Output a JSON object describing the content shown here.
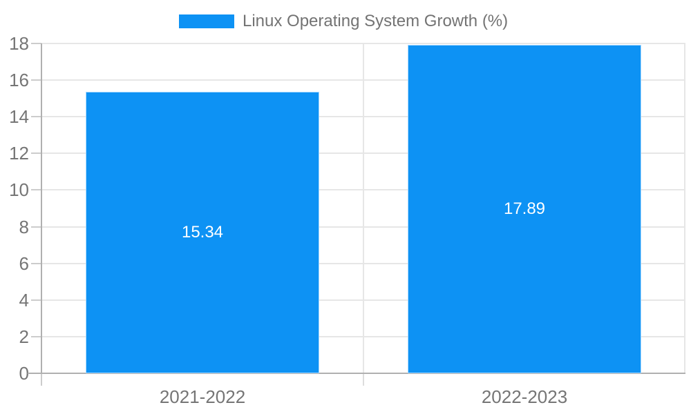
{
  "legend": {
    "label": "Linux Operating System Growth (%)"
  },
  "colors": {
    "bar": "#0d92f4",
    "bar_edge": "#a8d9ff",
    "gridline": "#e6e6e6",
    "axis_line": "#b0b0b0",
    "tick": "#cccccc",
    "mid_tick": "#dddddd",
    "axis_text": "#757575",
    "legend_text": "#737373",
    "value_text": "#ffffff",
    "background": "#ffffff"
  },
  "chart_data": {
    "type": "bar",
    "title": "",
    "legend": "Linux Operating System Growth (%)",
    "legend_position": "top",
    "categories": [
      "2021-2022",
      "2022-2023"
    ],
    "values": [
      15.34,
      17.89
    ],
    "value_labels": [
      "15.34",
      "17.89"
    ],
    "ylabel": "",
    "xlabel": "",
    "ylim": [
      0,
      18
    ],
    "yticks": [
      0,
      2,
      4,
      6,
      8,
      10,
      12,
      14,
      16,
      18
    ],
    "grid": true
  }
}
